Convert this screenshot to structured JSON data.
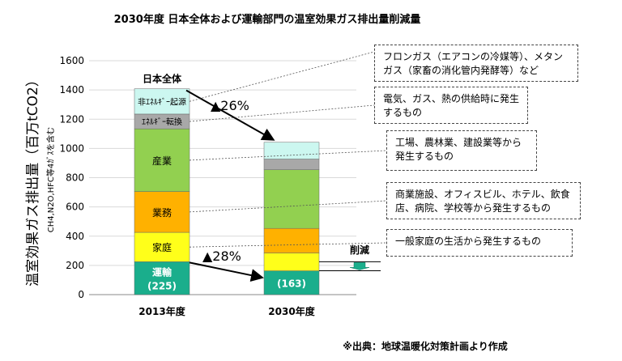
{
  "chart_data": {
    "type": "bar",
    "title": "2030年度 日本全体および運輸部門の温室効果ガス排出量削減量",
    "ylabel": "温室効果ガス排出量（百万tCO2）",
    "ylabel_sub": "CH4,N2O,HFC等4ｶﾞｽを含む",
    "ylim": [
      0,
      1600
    ],
    "yticks": [
      "0",
      "200",
      "400",
      "600",
      "800",
      "1000",
      "1200",
      "1400",
      "1600"
    ],
    "categories": [
      "2013年度",
      "2030年度"
    ],
    "series": [
      {
        "name": "運輸",
        "values": [
          225,
          163
        ],
        "color": "#1aae8c"
      },
      {
        "name": "家庭",
        "values": [
          201,
          122
        ],
        "color": "#ffff1a"
      },
      {
        "name": "業務",
        "values": [
          279,
          168
        ],
        "color": "#ffb100"
      },
      {
        "name": "産業",
        "values": [
          429,
          401
        ],
        "color": "#92d050"
      },
      {
        "name": "ｴﾈﾙｷﾞｰ転換",
        "values": [
          101,
          73
        ],
        "color": "#a8a8a8"
      },
      {
        "name": "非ｴﾈﾙｷﾞｰ起源",
        "values": [
          173,
          115
        ],
        "color": "#ccf7f0"
      }
    ],
    "grid": true
  },
  "labels": {
    "bar1_top": "日本全体",
    "transport_1": "運輸",
    "transport_1_value": "(225)",
    "transport_2_value": "(163)",
    "reduction_total": "▲26%",
    "reduction_transport": "▲28%",
    "reduction": "削減",
    "source": "※出典：地球温暖化対策計画より作成"
  },
  "callouts": [
    "フロンガス（エアコンの冷媒等）、メタンガス（家畜の消化管内発酵等）など",
    "電気、ガス、熱の供給時に発生するもの",
    "工場、農林業、建設業等から発生するもの",
    "商業施設、オフィスビル、ホテル、飲食店、病院、学校等から発生するもの",
    "一般家庭の生活から発生するもの"
  ]
}
